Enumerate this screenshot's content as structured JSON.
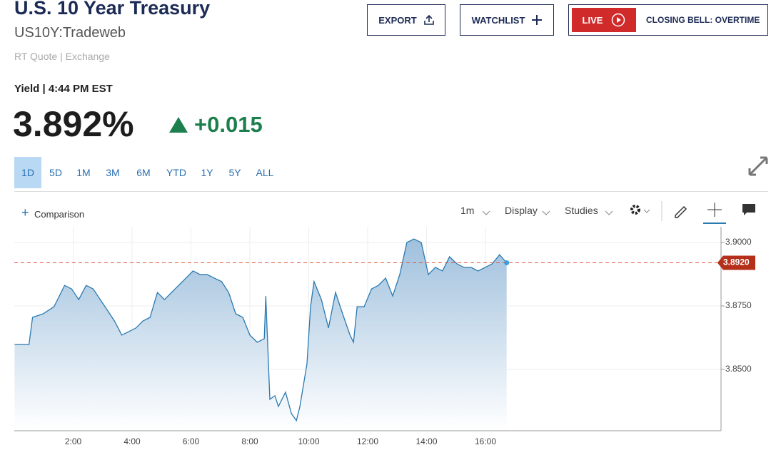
{
  "header": {
    "title": "U.S. 10 Year Treasury",
    "symbol": "US10Y:Tradeweb",
    "quote_source": "RT Quote | Exchange"
  },
  "buttons": {
    "export": "EXPORT",
    "watchlist": "WATCHLIST",
    "live": "LIVE",
    "live_show": "CLOSING BELL: OVERTIME"
  },
  "quote": {
    "label": "Yield | 4:44 PM EST",
    "price": "3.892%",
    "change": "+0.015"
  },
  "ranges": [
    "1D",
    "5D",
    "1M",
    "3M",
    "6M",
    "YTD",
    "1Y",
    "5Y",
    "ALL"
  ],
  "toolbar": {
    "comparison": "Comparison",
    "interval": "1m",
    "display": "Display",
    "studies": "Studies"
  },
  "chart_data": {
    "type": "line",
    "x": [
      0.01,
      0.5,
      0.62,
      0.98,
      1.35,
      1.71,
      1.95,
      2.19,
      2.44,
      2.68,
      2.92,
      3.16,
      3.4,
      3.65,
      3.89,
      4.13,
      4.37,
      4.61,
      4.86,
      5.1,
      5.34,
      5.58,
      5.83,
      6.07,
      6.31,
      6.55,
      6.79,
      7.04,
      7.28,
      7.52,
      7.76,
      8.0,
      8.25,
      8.49,
      8.54,
      8.68,
      8.85,
      8.97,
      9.21,
      9.41,
      9.58,
      9.7,
      9.94,
      10.06,
      10.18,
      10.43,
      10.67,
      10.91,
      11.15,
      11.4,
      11.52,
      11.64,
      11.88,
      12.13,
      12.36,
      12.61,
      12.85,
      13.09,
      13.33,
      13.57,
      13.82,
      14.06,
      14.3,
      14.54,
      14.78,
      15.03,
      15.27,
      15.51,
      15.75,
      15.99,
      16.23,
      16.48,
      16.72
    ],
    "series": [
      {
        "name": "US10Y",
        "color": "#2a7ab0",
        "values": [
          3.8598,
          3.8598,
          3.8705,
          3.8719,
          3.8747,
          3.8831,
          3.8817,
          3.8775,
          3.8831,
          3.8817,
          3.8775,
          3.8733,
          3.8691,
          3.8635,
          3.8649,
          3.8663,
          3.8691,
          3.8705,
          3.8803,
          3.8775,
          3.8803,
          3.8831,
          3.886,
          3.8888,
          3.8874,
          3.8874,
          3.886,
          3.8846,
          3.8803,
          3.8719,
          3.8705,
          3.8635,
          3.8607,
          3.8621,
          3.8789,
          3.8382,
          3.8396,
          3.8354,
          3.841,
          3.8326,
          3.8298,
          3.8354,
          3.8522,
          3.8747,
          3.8846,
          3.8775,
          3.8663,
          3.8803,
          3.8719,
          3.8635,
          3.8607,
          3.8747,
          3.8747,
          3.8817,
          3.8831,
          3.886,
          3.8789,
          3.8874,
          3.9,
          3.9014,
          3.9,
          3.8874,
          3.8902,
          3.8888,
          3.8944,
          3.8916,
          3.8902,
          3.8902,
          3.8888,
          3.8902,
          3.8916,
          3.8952,
          3.892
        ]
      }
    ],
    "last_price": {
      "value": 3.892,
      "label": "3.8920"
    },
    "xlim": [
      0,
      24
    ],
    "ylim": [
      3.8258,
      3.9062
    ],
    "xticks": [
      {
        "value": 2,
        "label": "2:00"
      },
      {
        "value": 4,
        "label": "4:00"
      },
      {
        "value": 6,
        "label": "6:00"
      },
      {
        "value": 8,
        "label": "8:00"
      },
      {
        "value": 10,
        "label": "10:00"
      },
      {
        "value": 12,
        "label": "12:00"
      },
      {
        "value": 14,
        "label": "14:00"
      },
      {
        "value": 16,
        "label": "16:00"
      }
    ],
    "yticks": [
      {
        "value": 3.85,
        "label": "3.8500"
      },
      {
        "value": 3.875,
        "label": "3.8750"
      },
      {
        "value": 3.9,
        "label": "3.9000"
      }
    ],
    "grid": true
  }
}
